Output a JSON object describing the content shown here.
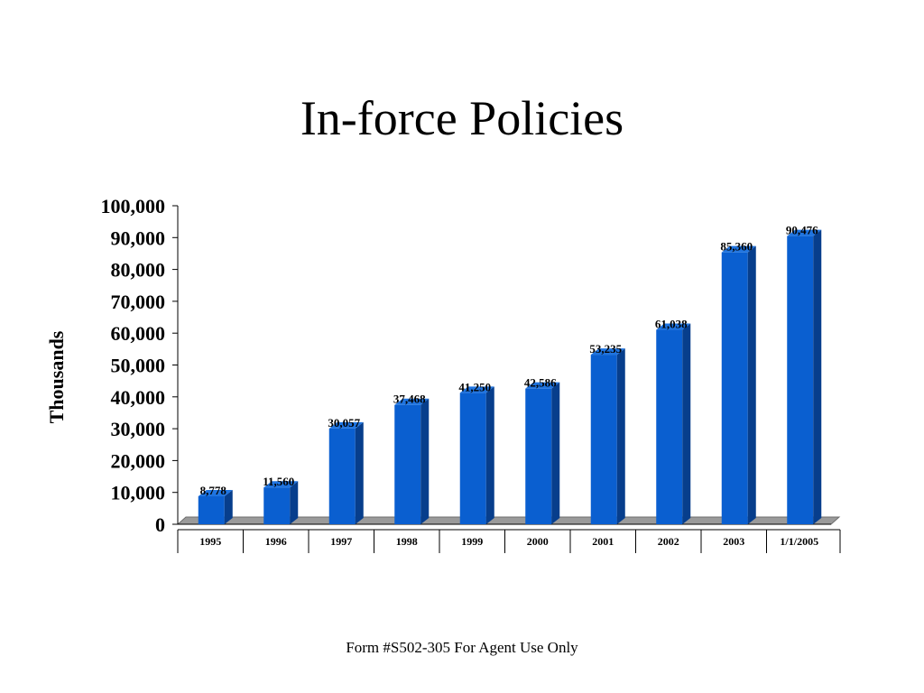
{
  "slide": {
    "title": "In-force Policies",
    "footer": "Form #S502-305 For Agent Use Only"
  },
  "colors": {
    "bar_front": "#0a5fd0",
    "bar_side": "#073e8c",
    "bar_top": "#1f74e0",
    "floor": "#9a9a9a",
    "floor_edge": "#6e6e6e",
    "text": "#000000"
  },
  "chart_data": {
    "type": "bar",
    "title": "In-force Policies",
    "xlabel": "",
    "ylabel": "Thousands",
    "ylim": [
      0,
      100000
    ],
    "yticks": [
      0,
      10000,
      20000,
      30000,
      40000,
      50000,
      60000,
      70000,
      80000,
      90000,
      100000
    ],
    "ytick_labels": [
      "0",
      "10,000",
      "20,000",
      "30,000",
      "40,000",
      "50,000",
      "60,000",
      "70,000",
      "80,000",
      "90,000",
      "100,000"
    ],
    "categories": [
      "1995",
      "1996",
      "1997",
      "1998",
      "1999",
      "2000",
      "2001",
      "2002",
      "2003",
      "1/1/2005"
    ],
    "values": [
      8778,
      11560,
      30057,
      37468,
      41250,
      42586,
      53235,
      61038,
      85360,
      90476
    ],
    "value_labels": [
      "8,778",
      "11,560",
      "30,057",
      "37,468",
      "41,250",
      "42,586",
      "53,235",
      "61,038",
      "85,360",
      "90,476"
    ],
    "grid": false,
    "legend": "none",
    "style": "3d-column"
  }
}
